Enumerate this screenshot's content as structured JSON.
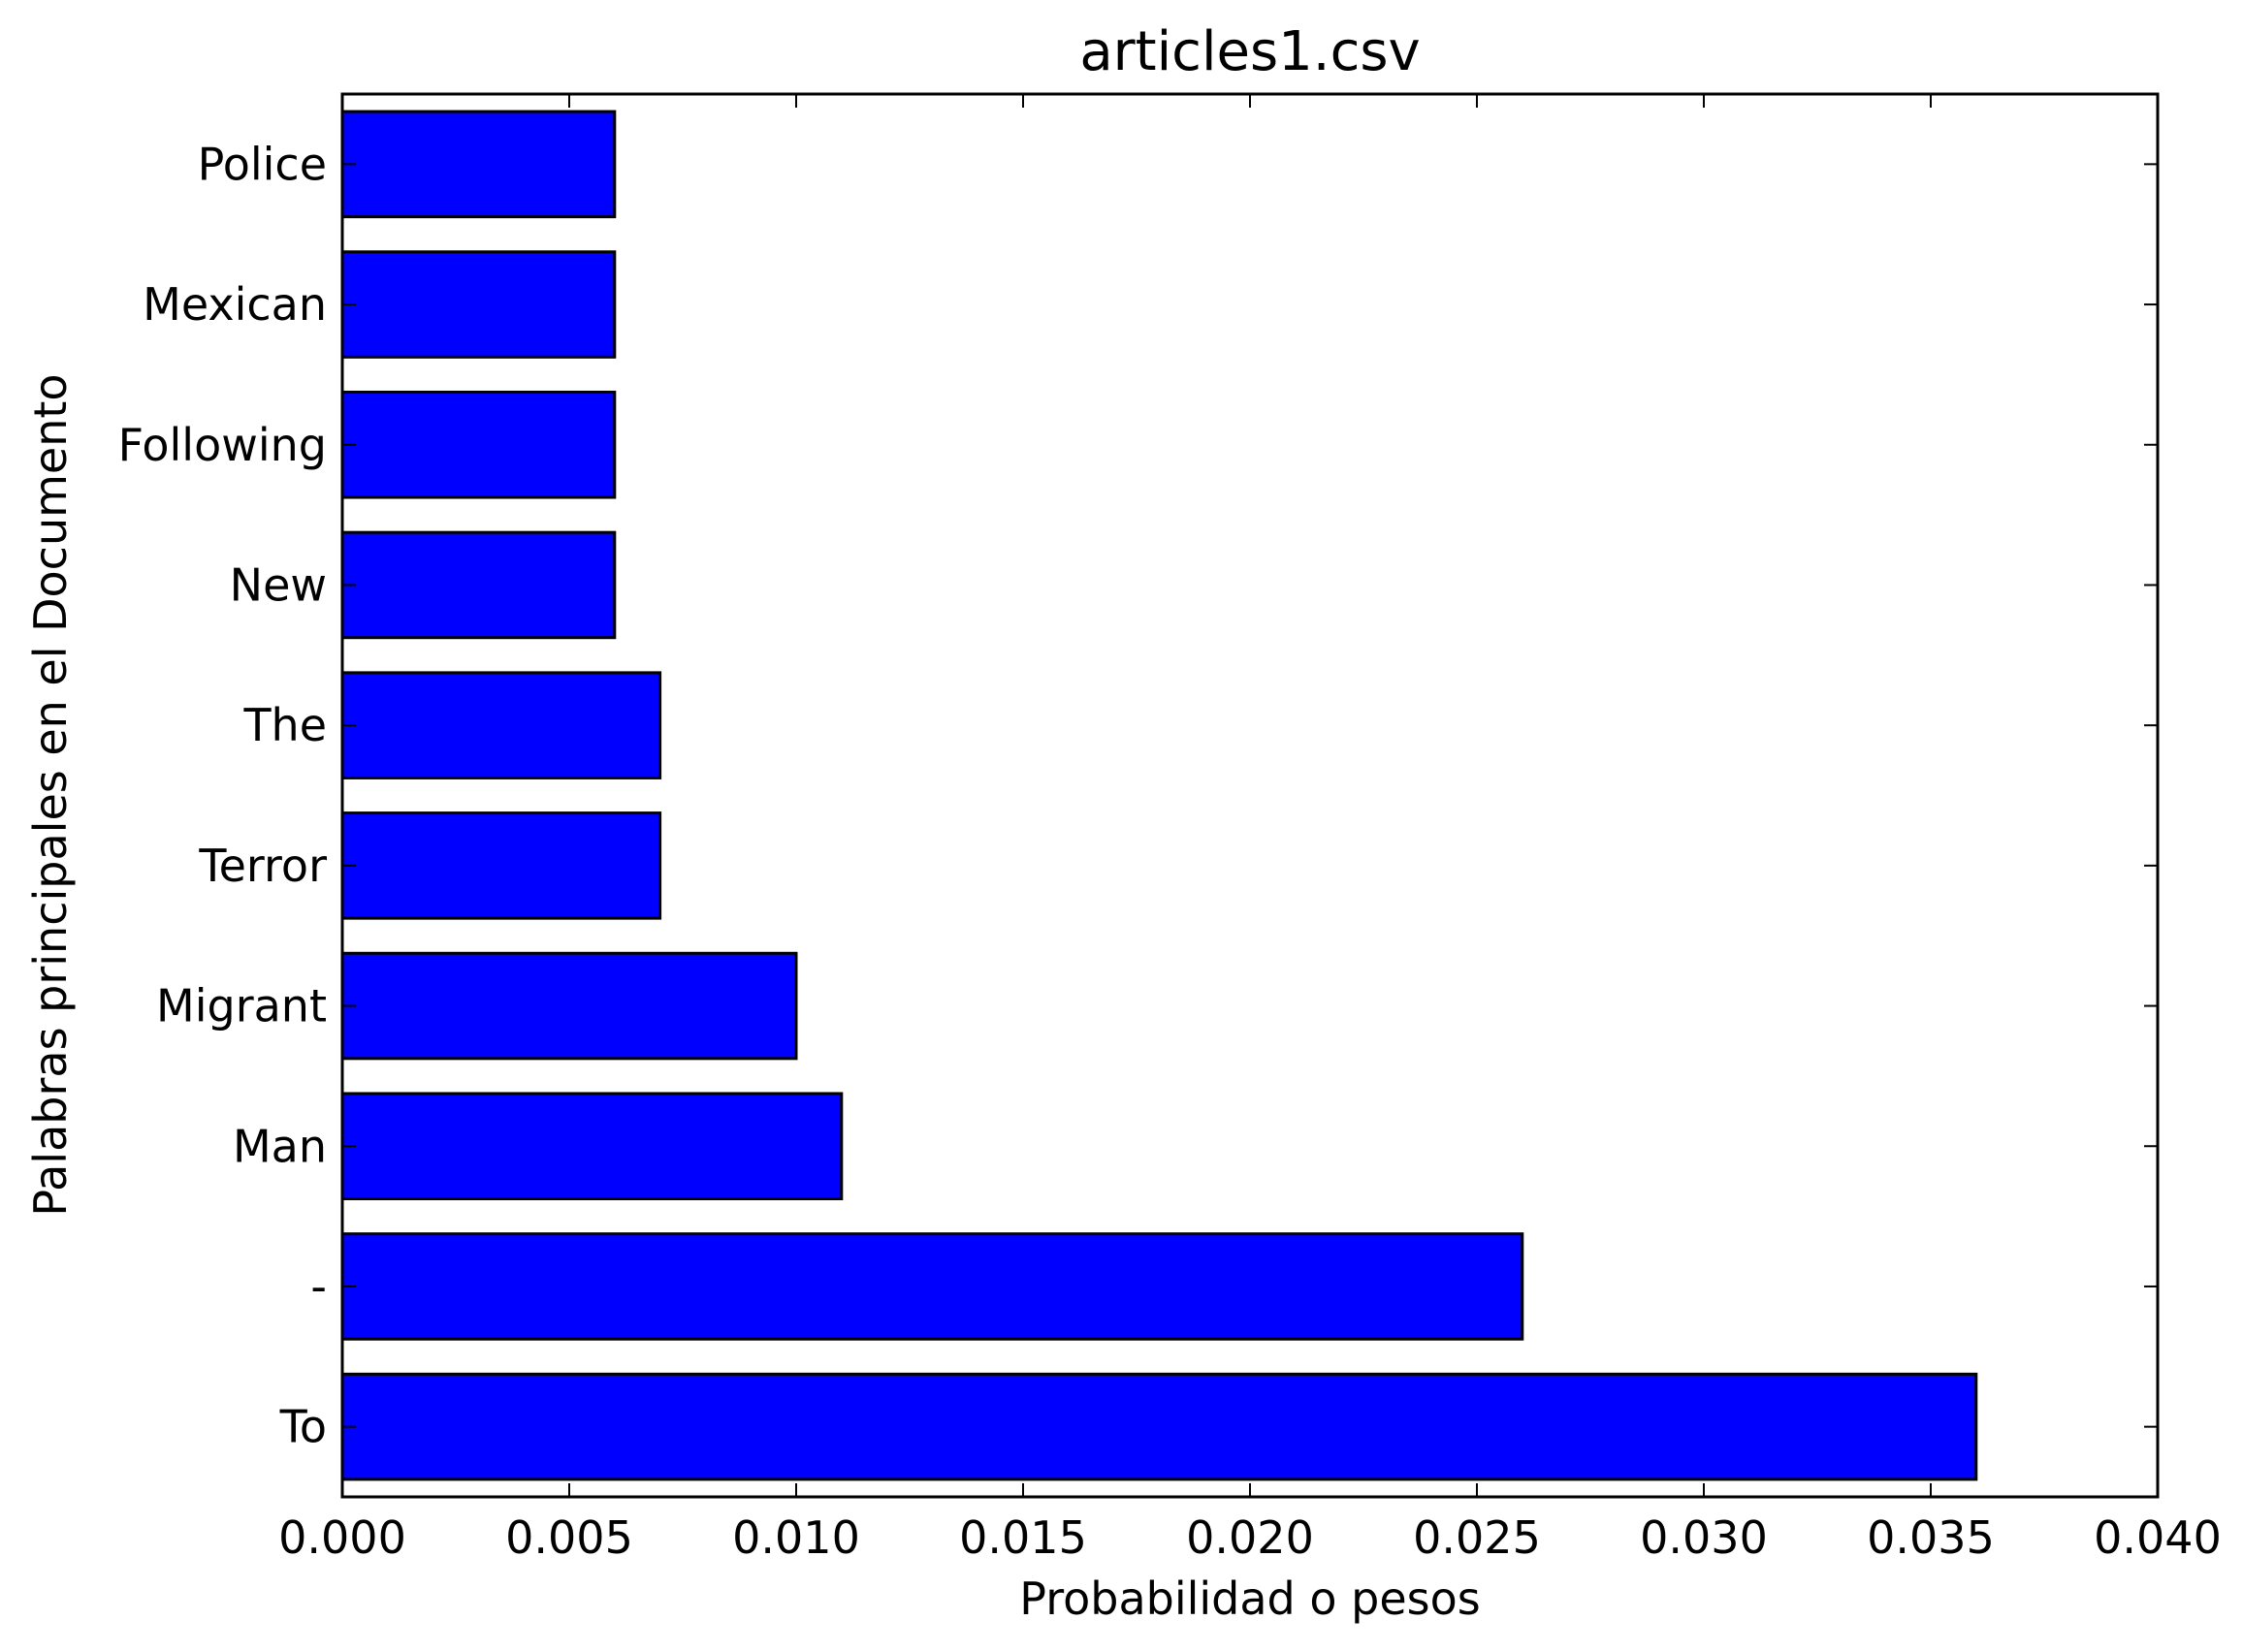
{
  "chart_data": {
    "type": "bar",
    "orientation": "horizontal",
    "title": "articles1.csv",
    "xlabel": "Probabilidad o pesos",
    "ylabel": "Palabras principales en el Documento",
    "categories": [
      "To",
      "-",
      "Man",
      "Migrant",
      "Terror",
      "The",
      "New",
      "Following",
      "Mexican",
      "Police"
    ],
    "values": [
      0.036,
      0.026,
      0.011,
      0.01,
      0.007,
      0.007,
      0.006,
      0.006,
      0.006,
      0.006
    ],
    "xlim": [
      0.0,
      0.04
    ],
    "xticks": [
      "0.000",
      "0.005",
      "0.010",
      "0.015",
      "0.020",
      "0.025",
      "0.030",
      "0.035",
      "0.040"
    ],
    "bar_color": "#0000ff",
    "edge_color": "#000000",
    "grid": false,
    "legend": "none"
  }
}
